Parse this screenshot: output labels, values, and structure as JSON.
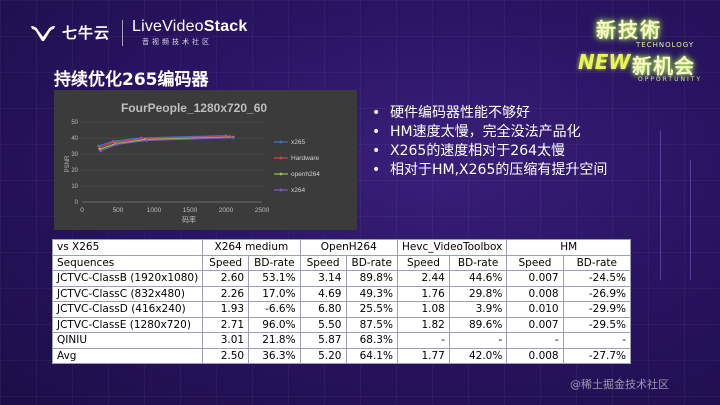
{
  "header": {
    "qiniu_text": "七牛云",
    "lvs_main_prefix": "LiveVideo",
    "lvs_main_bold": "Stack",
    "lvs_sub": "音视频技术社区"
  },
  "event_logo": {
    "line1": "新技術",
    "tech": "TECHNOLOGY",
    "new": "NEW",
    "line2": "新机会",
    "opportunity": "OPPORTUNITY"
  },
  "title": "持续优化265编码器",
  "bullets": [
    "硬件编码器性能不够好",
    "HM速度太慢，完全没法产品化",
    "X265的速度相对于264太慢",
    "相对于HM,X265的压缩有提升空间"
  ],
  "chart_data": {
    "type": "line",
    "title": "FourPeople_1280x720_60",
    "xlabel": "码率",
    "ylabel": "PSNR",
    "xlim": [
      0,
      2500
    ],
    "ylim": [
      0,
      50
    ],
    "x_ticks": [
      "0",
      "500",
      "1000",
      "1500",
      "2000",
      "2500"
    ],
    "y_ticks": [
      "0",
      "10",
      "20",
      "30",
      "40",
      "50"
    ],
    "legend_position": "right",
    "grid": true,
    "series": [
      {
        "name": "x265",
        "color": "#4a6fc4",
        "x": [
          230,
          430,
          820,
          2000
        ],
        "y": [
          35,
          38,
          40,
          41.5
        ]
      },
      {
        "name": "Hardware",
        "color": "#c44a4a",
        "x": [
          240,
          450,
          850,
          2050
        ],
        "y": [
          34,
          37.5,
          39.5,
          41
        ]
      },
      {
        "name": "openh264",
        "color": "#9ac44a",
        "x": [
          250,
          470,
          880,
          2100
        ],
        "y": [
          33,
          36.5,
          39,
          40.5
        ]
      },
      {
        "name": "x264",
        "color": "#7a5cc4",
        "x": [
          260,
          480,
          900,
          2100
        ],
        "y": [
          32,
          36,
          38.5,
          40.2
        ]
      }
    ]
  },
  "table": {
    "header1": [
      "vs X265",
      "X264 medium",
      "OpenH264",
      "Hevc_VideoToolbox",
      "HM"
    ],
    "header2": [
      "Sequences",
      "Speed",
      "BD-rate",
      "Speed",
      "BD-rate",
      "Speed",
      "BD-rate",
      "Speed",
      "BD-rate"
    ],
    "rows": [
      [
        "JCTVC-ClassB (1920x1080)",
        "2.60",
        "53.1%",
        "3.14",
        "89.8%",
        "2.44",
        "44.6%",
        "0.007",
        "-24.5%"
      ],
      [
        "JCTVC-ClassC (832x480)",
        "2.26",
        "17.0%",
        "4.69",
        "49.3%",
        "1.76",
        "29.8%",
        "0.008",
        "-26.9%"
      ],
      [
        "JCTVC-ClassD (416x240)",
        "1.93",
        "-6.6%",
        "6.80",
        "25.5%",
        "1.08",
        "3.9%",
        "0.010",
        "-29.9%"
      ],
      [
        "JCTVC-ClassE (1280x720)",
        "2.71",
        "96.0%",
        "5.50",
        "87.5%",
        "1.82",
        "89.6%",
        "0.007",
        "-29.5%"
      ],
      [
        "QINIU",
        "3.01",
        "21.8%",
        "5.87",
        "68.3%",
        "-",
        "-",
        "-",
        "-"
      ],
      [
        "Avg",
        "2.50",
        "36.3%",
        "5.20",
        "64.1%",
        "1.77",
        "42.0%",
        "0.008",
        "-27.7%"
      ]
    ]
  },
  "watermark": "@稀土掘金技术社区"
}
